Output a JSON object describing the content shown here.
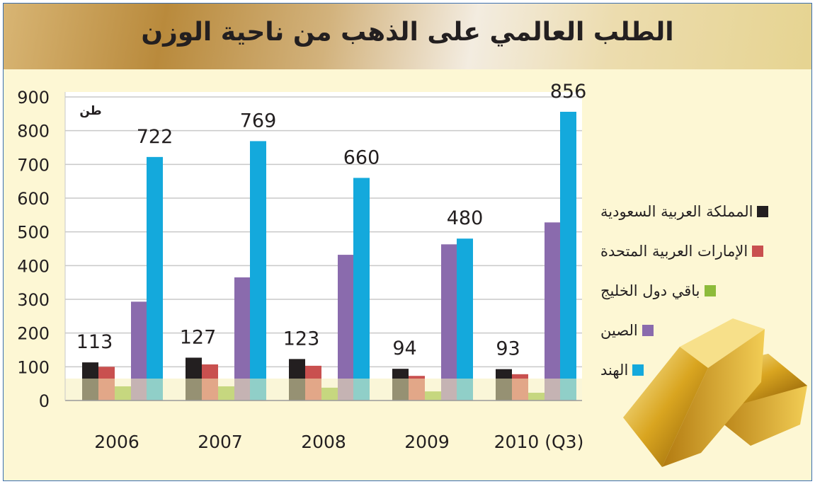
{
  "title": "الطلب العالمي على الذهب  من ناحية الوزن",
  "chart_data": {
    "type": "bar",
    "title": "الطلب العالمي على الذهب  من ناحية الوزن",
    "ylabel": "طن",
    "ylim": [
      0,
      900
    ],
    "yticks": [
      "0",
      "100",
      "200",
      "300",
      "400",
      "500",
      "600",
      "700",
      "800",
      "900"
    ],
    "grid": true,
    "legend_position": "right",
    "categories": [
      "2006",
      "2007",
      "2008",
      "2009",
      "2010 (Q3)"
    ],
    "series": [
      {
        "name": "المملكة العربية السعودية",
        "color": "#231f20",
        "values": [
          113,
          127,
          123,
          94,
          93
        ],
        "labeled": true
      },
      {
        "name": "الإمارات العربية المتحدة",
        "color": "#c9504f",
        "values": [
          100,
          107,
          103,
          73,
          78
        ],
        "labeled": false
      },
      {
        "name": "باقي دول الخليج",
        "color": "#8dbb3a",
        "values": [
          42,
          42,
          38,
          27,
          23
        ],
        "labeled": false
      },
      {
        "name": "الصين",
        "color": "#8a6bad",
        "values": [
          293,
          365,
          432,
          463,
          528
        ],
        "labeled": false
      },
      {
        "name": "الهند",
        "color": "#14a9dc",
        "values": [
          722,
          769,
          660,
          480,
          856
        ],
        "labeled": true
      }
    ]
  }
}
